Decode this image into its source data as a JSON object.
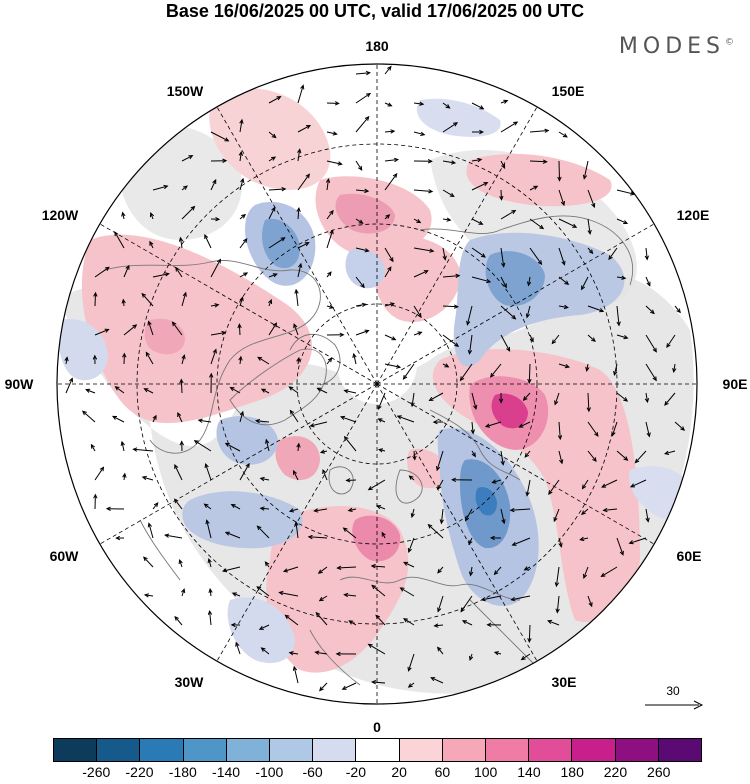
{
  "title": "Base 16/06/2025 00 UTC, valid 17/06/2025 00 UTC",
  "brand": {
    "name": "MODES",
    "mark": "©"
  },
  "longitude_labels": {
    "lon_180": "180",
    "lon_150e": "150E",
    "lon_120e": "120E",
    "lon_90e": "90E",
    "lon_60e": "60E",
    "lon_30e": "30E",
    "lon_0": "0",
    "lon_30w": "30W",
    "lon_60w": "60W",
    "lon_90w": "90W",
    "lon_120w": "120W",
    "lon_150w": "150W"
  },
  "wind_scale": {
    "label": "30"
  },
  "colorbar": {
    "colors": [
      "#0d3b5c",
      "#155a8a",
      "#2a7ab5",
      "#4f96c8",
      "#7fb1d9",
      "#afc8e6",
      "#d6dcef",
      "#ffffff",
      "#fad4d6",
      "#f6a8b8",
      "#f07ba5",
      "#e24d9a",
      "#c7208d",
      "#8e1080",
      "#5a0a72"
    ],
    "tick_labels": [
      "-260",
      "-220",
      "-180",
      "-140",
      "-100",
      "-60",
      "-20",
      "20",
      "60",
      "100",
      "140",
      "180",
      "220",
      "260"
    ]
  },
  "map_colors": {
    "ocean_gray": "#e6e6e6",
    "positive": "#f2b8c0",
    "negative": "#aebedc",
    "strong_positive": "#e2579a",
    "strong_negative": "#3d7fbf"
  }
}
